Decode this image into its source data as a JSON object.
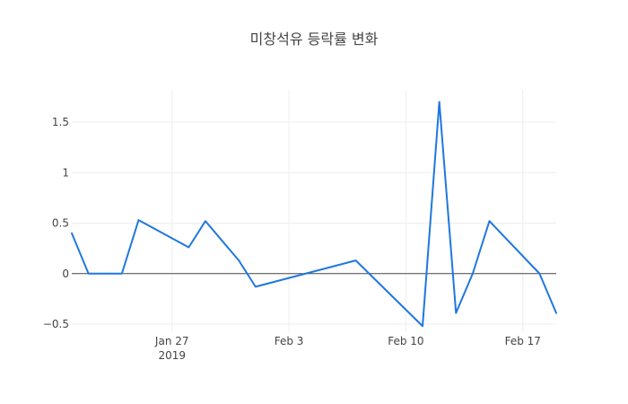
{
  "chart_data": {
    "type": "line",
    "title": "미창석유 등락률 변화",
    "xlabel": "",
    "ylabel": "",
    "x_axis": {
      "type": "date",
      "range": [
        "2019-01-21",
        "2019-02-19"
      ],
      "ticks": [
        {
          "date": "2019-01-27",
          "label": "Jan 27",
          "sublabel": "2019"
        },
        {
          "date": "2019-02-03",
          "label": "Feb 3",
          "sublabel": ""
        },
        {
          "date": "2019-02-10",
          "label": "Feb 10",
          "sublabel": ""
        },
        {
          "date": "2019-02-17",
          "label": "Feb 17",
          "sublabel": ""
        }
      ]
    },
    "y_axis": {
      "range": [
        -0.58,
        1.82
      ],
      "ticks": [
        {
          "value": -0.5,
          "label": "−0.5"
        },
        {
          "value": 0,
          "label": "0"
        },
        {
          "value": 0.5,
          "label": "0.5"
        },
        {
          "value": 1,
          "label": "1"
        },
        {
          "value": 1.5,
          "label": "1.5"
        }
      ]
    },
    "grid": true,
    "zero_line": true,
    "colors": {
      "series": "#1f77e0",
      "grid": "#eeeeee",
      "zero_line": "#444444"
    },
    "series": [
      {
        "points": [
          {
            "x": "2019-01-21",
            "y": 0.4
          },
          {
            "x": "2019-01-22",
            "y": 0.0
          },
          {
            "x": "2019-01-24",
            "y": 0.0
          },
          {
            "x": "2019-01-25",
            "y": 0.53
          },
          {
            "x": "2019-01-28",
            "y": 0.26
          },
          {
            "x": "2019-01-29",
            "y": 0.52
          },
          {
            "x": "2019-01-31",
            "y": 0.13
          },
          {
            "x": "2019-02-01",
            "y": -0.13
          },
          {
            "x": "2019-02-07",
            "y": 0.13
          },
          {
            "x": "2019-02-11",
            "y": -0.52
          },
          {
            "x": "2019-02-12",
            "y": 1.7
          },
          {
            "x": "2019-02-13",
            "y": -0.39
          },
          {
            "x": "2019-02-14",
            "y": 0.0
          },
          {
            "x": "2019-02-15",
            "y": 0.52
          },
          {
            "x": "2019-02-18",
            "y": 0.0
          },
          {
            "x": "2019-02-19",
            "y": -0.39
          }
        ]
      }
    ]
  }
}
